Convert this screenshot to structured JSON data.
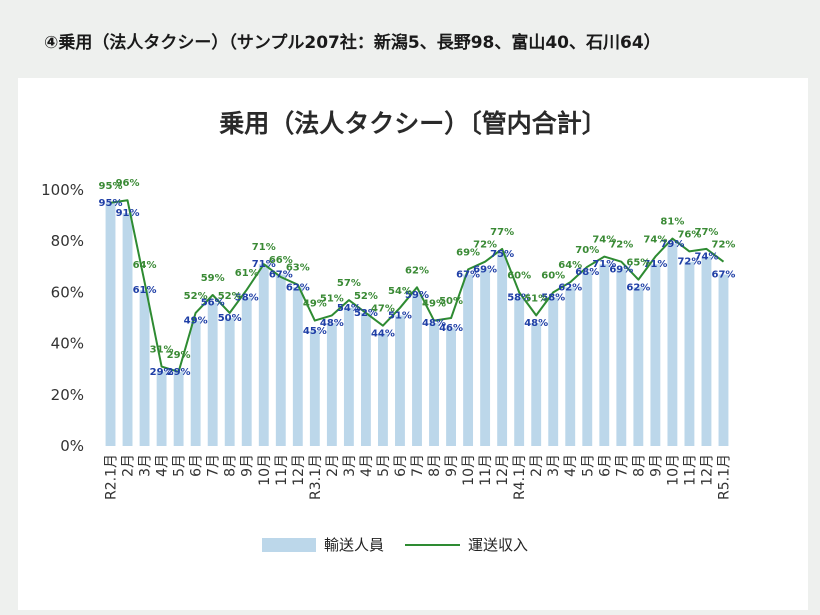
{
  "header": {
    "text": "④乗用（法人タクシー）（サンプル207社：新潟5、長野98、富山40、石川64）"
  },
  "chart_data": {
    "type": "bar",
    "title": "乗用（法人タクシー）〔管内合計〕",
    "categories": [
      "R2.1月",
      "2月",
      "3月",
      "4月",
      "5月",
      "6月",
      "7月",
      "8月",
      "9月",
      "10月",
      "11月",
      "12月",
      "R3.1月",
      "2月",
      "3月",
      "4月",
      "5月",
      "6月",
      "7月",
      "8月",
      "9月",
      "10月",
      "11月",
      "12月",
      "R4.1月",
      "2月",
      "3月",
      "4月",
      "5月",
      "6月",
      "7月",
      "8月",
      "9月",
      "10月",
      "11月",
      "12月",
      "R5.1月"
    ],
    "ylim": [
      0,
      100
    ],
    "yticks": [
      "0%",
      "20%",
      "40%",
      "60%",
      "80%",
      "100%"
    ],
    "series": [
      {
        "name": "輸送人員",
        "kind": "bar",
        "color": "#bcd7ea",
        "values": [
          95,
          91,
          61,
          29,
          29,
          49,
          56,
          50,
          58,
          71,
          67,
          62,
          45,
          48,
          54,
          52,
          44,
          51,
          59,
          48,
          46,
          67,
          69,
          75,
          58,
          48,
          58,
          62,
          68,
          71,
          69,
          62,
          71,
          79,
          72,
          74,
          67
        ],
        "labels": [
          "95%",
          "91%",
          "61%",
          "29%",
          "29%",
          "49%",
          "56%",
          "50%",
          "58%",
          "71%",
          "67%",
          "62%",
          "45%",
          "48%",
          "54%",
          "52%",
          "44%",
          "51%",
          "59%",
          "48%",
          "46%",
          "67%",
          "69%",
          "75%",
          "58%",
          "48%",
          "58%",
          "62%",
          "68%",
          "71%",
          "69%",
          "62%",
          "71%",
          "79%",
          "72%",
          "74%",
          "67%"
        ]
      },
      {
        "name": "運送収入",
        "kind": "line",
        "color": "#2e8b32",
        "values": [
          95,
          96,
          64,
          31,
          29,
          52,
          59,
          52,
          61,
          71,
          66,
          63,
          49,
          51,
          57,
          52,
          47,
          54,
          62,
          49,
          50,
          69,
          72,
          77,
          60,
          51,
          60,
          64,
          70,
          74,
          72,
          65,
          74,
          81,
          76,
          77,
          72
        ],
        "labels": [
          "95%",
          "96%",
          "64%",
          "31%",
          "29%",
          "52%",
          "59%",
          "52%",
          "61%",
          "71%",
          "66%",
          "63%",
          "49%",
          "51%",
          "57%",
          "52%",
          "47%",
          "54%",
          "62%",
          "49%",
          "50%",
          "69%",
          "72%",
          "77%",
          "60%",
          "51%",
          "60%",
          "64%",
          "70%",
          "74%",
          "72%",
          "65%",
          "74%",
          "81%",
          "76%",
          "77%",
          "72%"
        ]
      }
    ],
    "legend": {
      "placement": "bottom"
    },
    "grid": false
  }
}
